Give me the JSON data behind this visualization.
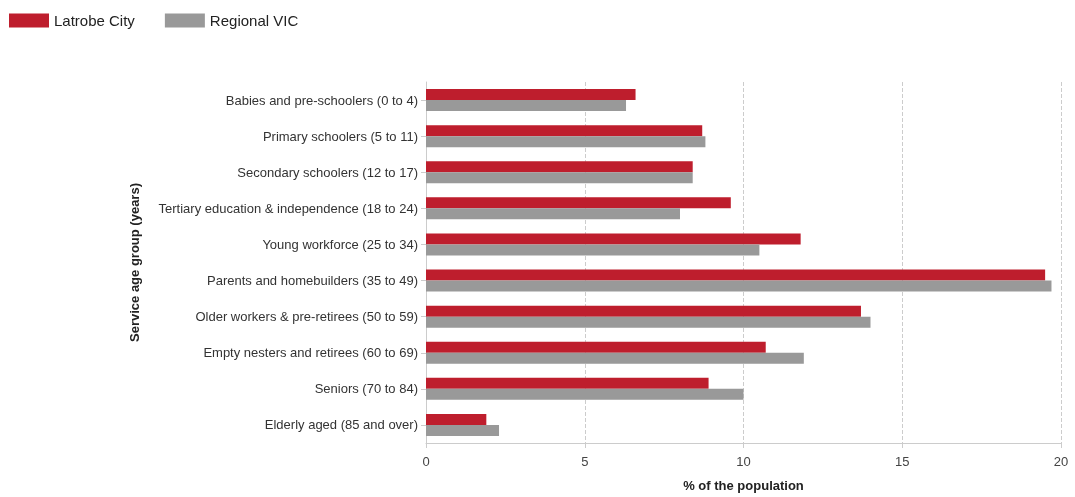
{
  "chart_data": {
    "type": "bar",
    "orientation": "horizontal",
    "xlabel": "% of the population",
    "ylabel": "Service age group (years)",
    "categories": [
      "Babies and pre-schoolers (0 to 4)",
      "Primary schoolers (5 to 11)",
      "Secondary schoolers (12 to 17)",
      "Tertiary education & independence (18 to 24)",
      "Young workforce (25 to 34)",
      "Parents and homebuilders (35 to 49)",
      "Older workers & pre-retirees (50 to 59)",
      "Empty nesters and retirees (60 to 69)",
      "Seniors (70 to 84)",
      "Elderly aged (85 and over)"
    ],
    "series": [
      {
        "name": "Latrobe City",
        "color": "#be1e2d",
        "values": [
          6.6,
          8.7,
          8.4,
          9.6,
          11.8,
          19.5,
          13.7,
          10.7,
          8.9,
          1.9
        ]
      },
      {
        "name": "Regional VIC",
        "color": "#999999",
        "values": [
          6.3,
          8.8,
          8.4,
          8.0,
          10.5,
          19.7,
          14.0,
          11.9,
          10.0,
          2.3
        ]
      }
    ],
    "xlim": [
      0,
      20
    ],
    "xticks": [
      0,
      5,
      10,
      15,
      20
    ],
    "grid": "x",
    "legend": "top left"
  }
}
